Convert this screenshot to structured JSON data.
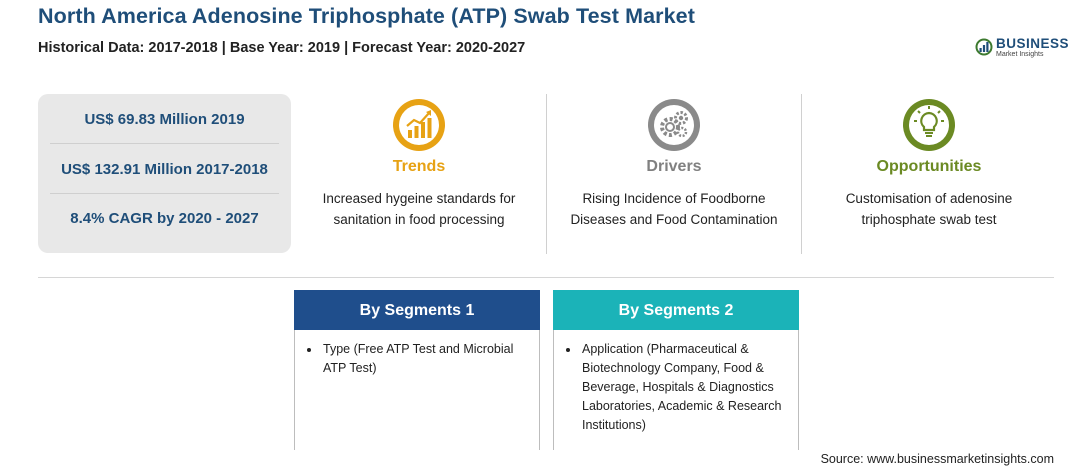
{
  "header": {
    "title": "North America Adenosine Triphosphate (ATP) Swab Test Market",
    "subtitle": "Historical Data: 2017-2018 | Base Year: 2019 | Forecast Year: 2020-2027"
  },
  "logo": {
    "word": "BUSINESS",
    "sub": "Market Insights"
  },
  "stats": [
    "US$ 69.83 Million 2019",
    "US$ 132.91 Million 2017-2018",
    "8.4% CAGR by 2020 - 2027"
  ],
  "columns": [
    {
      "heading": "Trends",
      "description_lines": [
        "Increased hygeine standards for",
        "sanitation in food processing"
      ],
      "color": "#e7a214",
      "icon": "trend-chart-icon"
    },
    {
      "heading": "Drivers",
      "description_lines": [
        "Rising Incidence of Foodborne",
        "Diseases and Food Contamination"
      ],
      "color": "#808080",
      "icon": "gears-icon"
    },
    {
      "heading": "Opportunities",
      "description_lines": [
        "Customisation of adenosine",
        "triphosphate swab test"
      ],
      "color": "#6b8a23",
      "icon": "lightbulb-icon"
    }
  ],
  "segments": [
    {
      "title": "By Segments 1",
      "color": "#1f4e8c",
      "items": [
        "Type (Free ATP Test and Microbial ATP Test)"
      ]
    },
    {
      "title": "By Segments 2",
      "color": "#1bb3b8",
      "items": [
        "Application (Pharmaceutical & Biotechnology Company, Food & Beverage, Hospitals & Diagnostics Laboratories, Academic & Research Institutions)"
      ]
    }
  ],
  "source": "Source: www.businessmarketinsights.com"
}
